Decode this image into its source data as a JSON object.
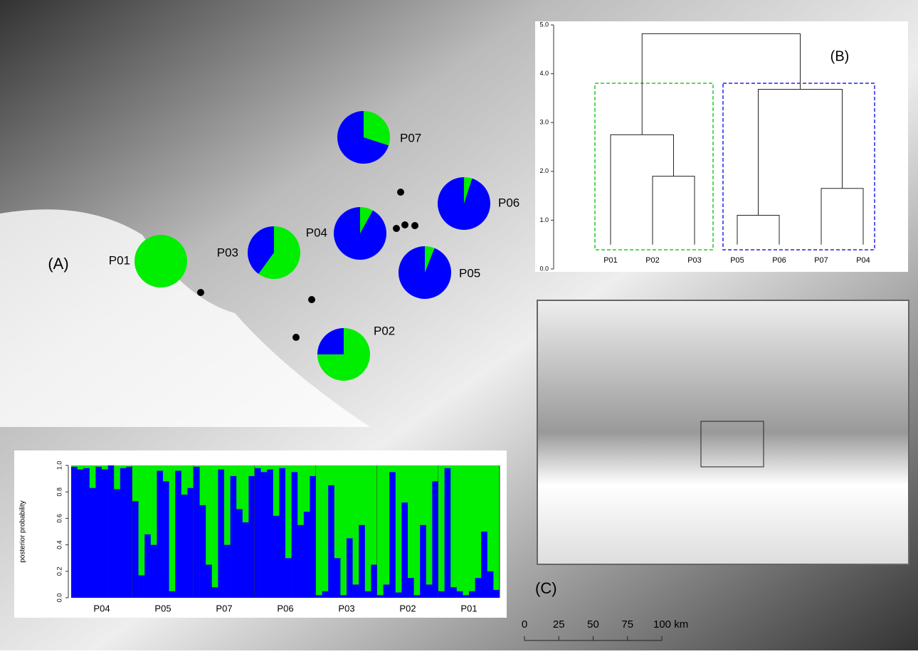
{
  "panel_labels": {
    "a": "(A)",
    "b": "(B)",
    "c": "(C)"
  },
  "pies": {
    "colors": [
      "#00ee00",
      "#0000ff"
    ],
    "items": [
      {
        "label": "P07",
        "values": [
          0.3,
          0.7
        ]
      },
      {
        "label": "P06",
        "values": [
          0.05,
          0.95
        ]
      },
      {
        "label": "P04",
        "values": [
          0.08,
          0.92
        ]
      },
      {
        "label": "P05",
        "values": [
          0.06,
          0.94
        ]
      },
      {
        "label": "P03",
        "values": [
          0.6,
          0.4
        ]
      },
      {
        "label": "P01",
        "values": [
          1,
          0
        ]
      },
      {
        "label": "P02",
        "values": [
          0.75,
          0.25
        ]
      }
    ]
  },
  "dendrogram": {
    "leaves": [
      "P01",
      "P02",
      "P03",
      "P05",
      "P06",
      "P07",
      "P04"
    ],
    "merge_heights": [
      1.9,
      2.75,
      1.1,
      1.65,
      3.68,
      4.82
    ],
    "ylim": [
      0,
      5
    ],
    "yticks": [
      {
        "value": 0,
        "label": "0.0"
      },
      {
        "value": 1,
        "label": "1.0"
      },
      {
        "value": 2,
        "label": "2.0"
      },
      {
        "value": 3,
        "label": "3.0"
      },
      {
        "value": 4,
        "label": "4.0"
      },
      {
        "value": 5,
        "label": "5.0"
      }
    ]
  },
  "structure": {
    "ylabel": "posterior probability",
    "ylim": [
      0,
      1
    ],
    "colors": [
      "#0000ff",
      "#00ee00"
    ],
    "yticks": [
      {
        "value": 0,
        "label": "0.0"
      },
      {
        "value": 0.2,
        "label": "0.2"
      },
      {
        "value": 0.4,
        "label": "0.4"
      },
      {
        "value": 0.6,
        "label": "0.6"
      },
      {
        "value": 0.8,
        "label": "0.8"
      },
      {
        "value": 1,
        "label": "1.0"
      }
    ],
    "groups": [
      {
        "name": "P04",
        "values": [
          0.99,
          0.97,
          0.98,
          0.83,
          0.99,
          0.97,
          1.0,
          0.82,
          0.98,
          0.99
        ]
      },
      {
        "name": "P05",
        "values": [
          0.73,
          0.17,
          0.48,
          0.4,
          0.96,
          0.88,
          0.05,
          0.96,
          0.78,
          0.83
        ]
      },
      {
        "name": "P07",
        "values": [
          0.99,
          0.7,
          0.25,
          0.08,
          0.97,
          0.4,
          0.92,
          0.67,
          0.57,
          0.92
        ]
      },
      {
        "name": "P06",
        "values": [
          0.98,
          0.95,
          0.97,
          0.62,
          0.98,
          0.3,
          0.95,
          0.55,
          0.65,
          0.92
        ]
      },
      {
        "name": "P03",
        "values": [
          0.02,
          0.05,
          0.85,
          0.3,
          0.02,
          0.45,
          0.1,
          0.55,
          0.05,
          0.25
        ]
      },
      {
        "name": "P02",
        "values": [
          0.02,
          0.1,
          0.95,
          0.04,
          0.72,
          0.15,
          0.02,
          0.55,
          0.1,
          0.88
        ]
      },
      {
        "name": "P01",
        "values": [
          0.05,
          0.98,
          0.08,
          0.05,
          0.02,
          0.05,
          0.15,
          0.5,
          0.2,
          0.06
        ]
      }
    ]
  },
  "scale_bar": {
    "xlim": [
      0,
      100
    ],
    "ticks": [
      0,
      25,
      50,
      75,
      {
        "value": 100,
        "label": "100 km"
      }
    ]
  }
}
